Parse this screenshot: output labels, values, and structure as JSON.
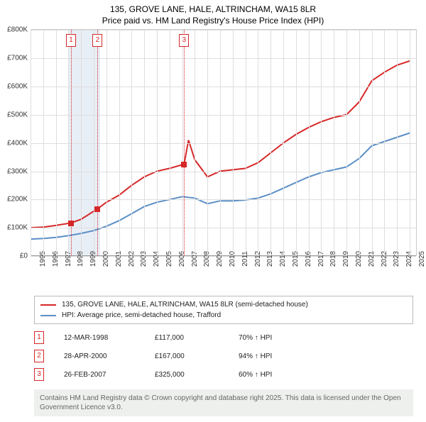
{
  "title": {
    "line1": "135, GROVE LANE, HALE, ALTRINCHAM, WA15 8LR",
    "line2": "Price paid vs. HM Land Registry's House Price Index (HPI)"
  },
  "chart": {
    "type": "line",
    "background_color": "#ffffff",
    "grid_color": "#dedede",
    "axis_color": "#999999",
    "x": {
      "min": 1995,
      "max": 2025.5,
      "ticks": [
        1995,
        1996,
        1997,
        1998,
        1999,
        2000,
        2001,
        2002,
        2003,
        2004,
        2005,
        2006,
        2007,
        2008,
        2009,
        2010,
        2011,
        2012,
        2013,
        2014,
        2015,
        2016,
        2017,
        2018,
        2019,
        2020,
        2021,
        2022,
        2023,
        2024,
        2025
      ],
      "label_fontsize": 10
    },
    "y": {
      "min": 0,
      "max": 800000,
      "ticks": [
        0,
        100000,
        200000,
        300000,
        400000,
        500000,
        600000,
        700000,
        800000
      ],
      "tick_labels": [
        "£0",
        "£100K",
        "£200K",
        "£300K",
        "£400K",
        "£500K",
        "£600K",
        "£700K",
        "£800K"
      ],
      "label_fontsize": 10
    },
    "highlight_band": {
      "from": 1998.0,
      "to": 2000.5,
      "color": "#e8eef6"
    },
    "series": [
      {
        "name": "price_paid",
        "label": "135, GROVE LANE, HALE, ALTRINCHAM, WA15 8LR (semi-detached house)",
        "color": "#d62728",
        "line_width": 2,
        "points": [
          [
            1995,
            100000
          ],
          [
            1996,
            102000
          ],
          [
            1997,
            108000
          ],
          [
            1998.2,
            117000
          ],
          [
            1999,
            130000
          ],
          [
            2000.3,
            167000
          ],
          [
            2001,
            190000
          ],
          [
            2002,
            215000
          ],
          [
            2003,
            250000
          ],
          [
            2004,
            280000
          ],
          [
            2005,
            300000
          ],
          [
            2006,
            310000
          ],
          [
            2007.15,
            325000
          ],
          [
            2007.5,
            410000
          ],
          [
            2008,
            340000
          ],
          [
            2009,
            280000
          ],
          [
            2010,
            300000
          ],
          [
            2011,
            305000
          ],
          [
            2012,
            310000
          ],
          [
            2013,
            330000
          ],
          [
            2014,
            365000
          ],
          [
            2015,
            400000
          ],
          [
            2016,
            430000
          ],
          [
            2017,
            455000
          ],
          [
            2018,
            475000
          ],
          [
            2019,
            490000
          ],
          [
            2020,
            500000
          ],
          [
            2021,
            545000
          ],
          [
            2022,
            620000
          ],
          [
            2023,
            650000
          ],
          [
            2024,
            675000
          ],
          [
            2025,
            690000
          ]
        ]
      },
      {
        "name": "hpi",
        "label": "HPI: Average price, semi-detached house, Trafford",
        "color": "#5b8fc7",
        "line_width": 2,
        "points": [
          [
            1995,
            60000
          ],
          [
            1996,
            62000
          ],
          [
            1997,
            66000
          ],
          [
            1998,
            72000
          ],
          [
            1999,
            80000
          ],
          [
            2000,
            90000
          ],
          [
            2001,
            105000
          ],
          [
            2002,
            125000
          ],
          [
            2003,
            150000
          ],
          [
            2004,
            175000
          ],
          [
            2005,
            190000
          ],
          [
            2006,
            200000
          ],
          [
            2007,
            210000
          ],
          [
            2008,
            205000
          ],
          [
            2009,
            185000
          ],
          [
            2010,
            195000
          ],
          [
            2011,
            195000
          ],
          [
            2012,
            198000
          ],
          [
            2013,
            205000
          ],
          [
            2014,
            220000
          ],
          [
            2015,
            240000
          ],
          [
            2016,
            260000
          ],
          [
            2017,
            280000
          ],
          [
            2018,
            295000
          ],
          [
            2019,
            305000
          ],
          [
            2020,
            315000
          ],
          [
            2021,
            345000
          ],
          [
            2022,
            390000
          ],
          [
            2023,
            405000
          ],
          [
            2024,
            420000
          ],
          [
            2025,
            435000
          ]
        ]
      }
    ],
    "markers": [
      {
        "n": "1",
        "x": 1998.2,
        "y": 117000
      },
      {
        "n": "2",
        "x": 2000.3,
        "y": 167000
      },
      {
        "n": "3",
        "x": 2007.15,
        "y": 325000
      }
    ]
  },
  "legend": {
    "items": [
      {
        "color": "#d62728",
        "label": "135, GROVE LANE, HALE, ALTRINCHAM, WA15 8LR (semi-detached house)"
      },
      {
        "color": "#5b8fc7",
        "label": "HPI: Average price, semi-detached house, Trafford"
      }
    ]
  },
  "sales": [
    {
      "n": "1",
      "date": "12-MAR-1998",
      "price": "£117,000",
      "pct": "70% ↑ HPI"
    },
    {
      "n": "2",
      "date": "28-APR-2000",
      "price": "£167,000",
      "pct": "94% ↑ HPI"
    },
    {
      "n": "3",
      "date": "26-FEB-2007",
      "price": "£325,000",
      "pct": "60% ↑ HPI"
    }
  ],
  "footer": "Contains HM Land Registry data © Crown copyright and database right 2025. This data is licensed under the Open Government Licence v3.0."
}
